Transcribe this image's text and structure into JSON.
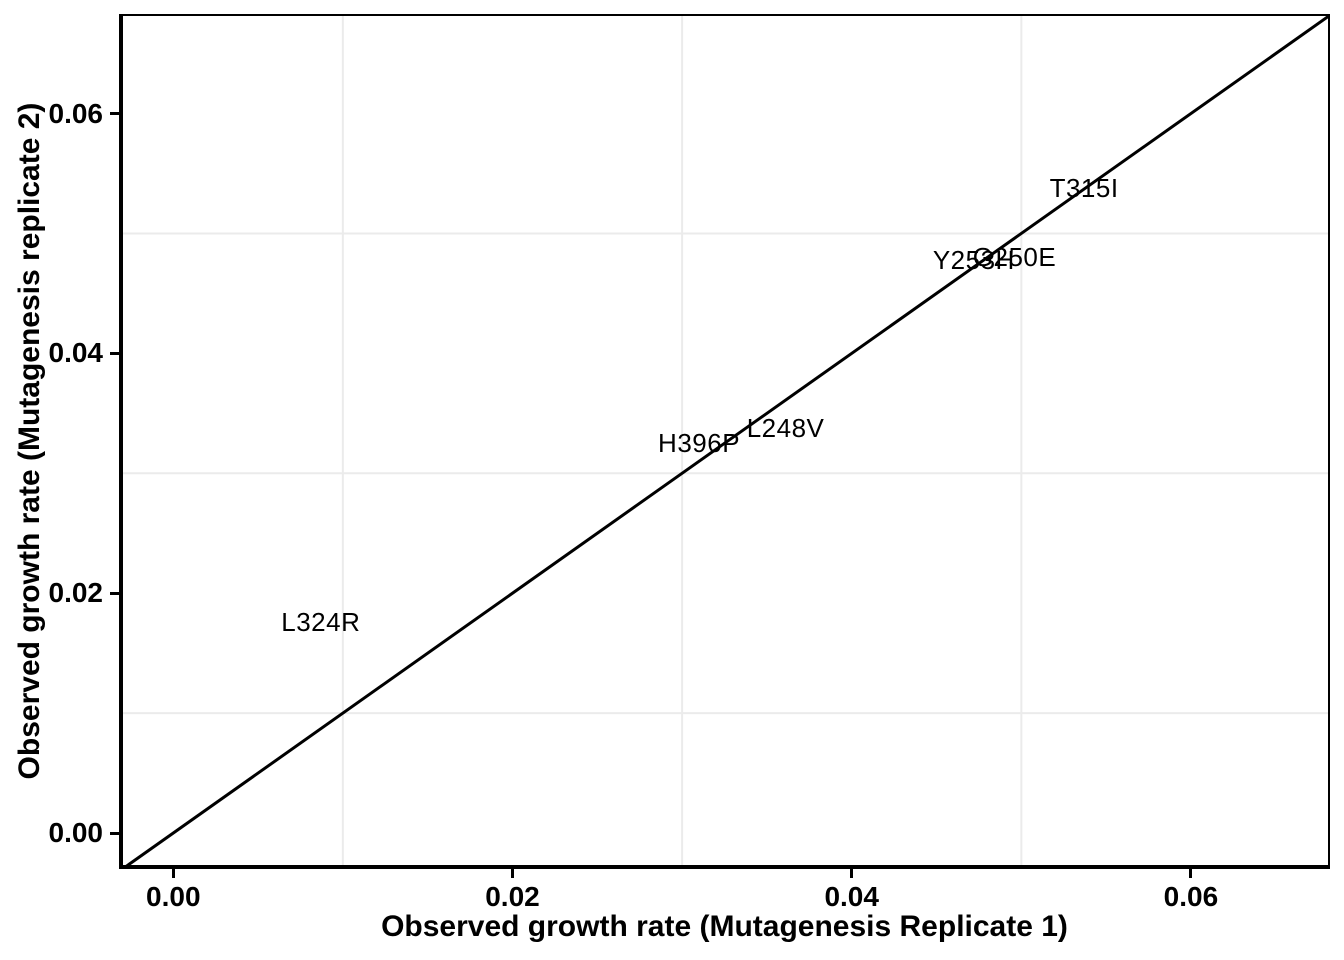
{
  "figure": {
    "background_color": "#ffffff",
    "panel_border_color": "#000000",
    "axis_line_color": "#000000",
    "grid_color": "#ebebeb",
    "text_color": "#000000"
  },
  "chart_data": {
    "type": "scatter",
    "title": "",
    "xlabel": "Observed growth rate (Mutagenesis Replicate 1)",
    "ylabel": "Observed growth rate (Mutagenesis replicate 2)",
    "xlim": [
      -0.0032,
      0.0682
    ],
    "ylim": [
      -0.003,
      0.0683
    ],
    "x_tick_values": [
      0.0,
      0.02,
      0.04,
      0.06
    ],
    "x_tick_labels": [
      "0.00",
      "0.02",
      "0.04",
      "0.06"
    ],
    "y_tick_values": [
      0.0,
      0.02,
      0.04,
      0.06
    ],
    "y_tick_labels": [
      "0.00",
      "0.02",
      "0.04",
      "0.06"
    ],
    "minor_gridline_values": [
      0.01,
      0.03,
      0.05
    ],
    "grid": "minor-gridlines-only, light gray, both axes",
    "legend": "none",
    "reference_line": {
      "type": "identity",
      "description": "y = x diagonal from lower-left to upper-right",
      "color": "#000000"
    },
    "point_style": "text-label-at-point (no marker symbols)",
    "points": [
      {
        "label": "T315I",
        "x": 0.0537,
        "y": 0.0538
      },
      {
        "label": "G250E",
        "x": 0.0496,
        "y": 0.048
      },
      {
        "label": "Y253H",
        "x": 0.0472,
        "y": 0.0478
      },
      {
        "label": "L248V",
        "x": 0.0361,
        "y": 0.0338
      },
      {
        "label": "H396P",
        "x": 0.031,
        "y": 0.0325
      },
      {
        "label": "L324R",
        "x": 0.0087,
        "y": 0.0176
      }
    ]
  }
}
